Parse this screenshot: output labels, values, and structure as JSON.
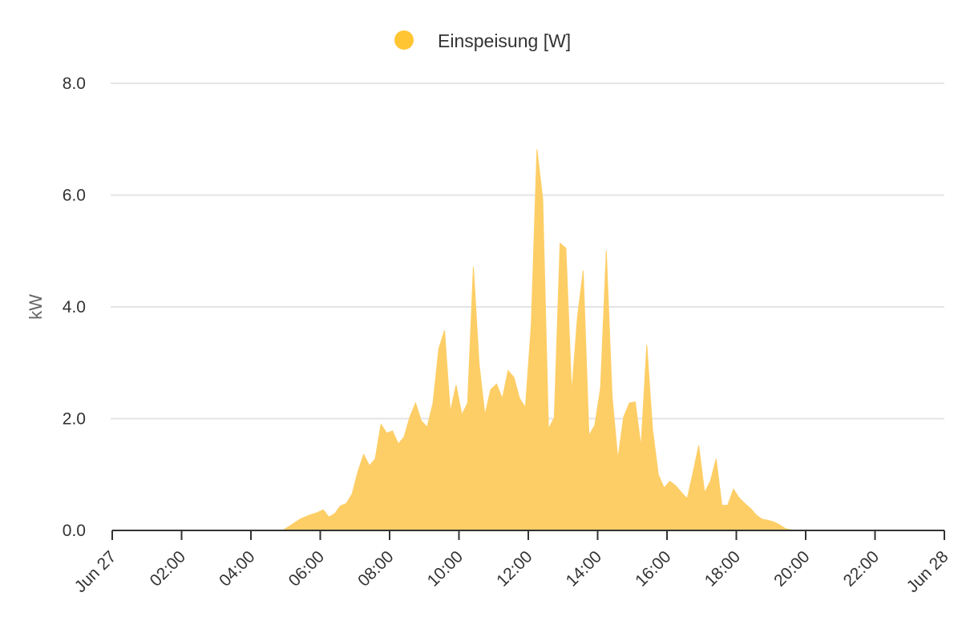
{
  "chart_data": {
    "type": "area",
    "title": "",
    "xlabel": "",
    "ylabel": "kW",
    "ylim": [
      0,
      8
    ],
    "y_ticks": [
      "0.0",
      "2.0",
      "4.0",
      "6.0",
      "8.0"
    ],
    "x_ticks": [
      "Jun 27",
      "02:00",
      "04:00",
      "06:00",
      "08:00",
      "10:00",
      "12:00",
      "14:00",
      "16:00",
      "18:00",
      "20:00",
      "22:00",
      "Jun 28"
    ],
    "grid": true,
    "legend_position": "top-center",
    "series": [
      {
        "name": "Einspeisung [W]",
        "color": "#FFC533",
        "fill_color": "#FDCE66",
        "x": [
          "00:00",
          "04:55",
          "05:10",
          "05:25",
          "05:40",
          "05:55",
          "06:05",
          "06:15",
          "06:25",
          "06:35",
          "06:45",
          "06:55",
          "07:05",
          "07:15",
          "07:25",
          "07:35",
          "07:45",
          "07:55",
          "08:05",
          "08:15",
          "08:25",
          "08:35",
          "08:45",
          "08:55",
          "09:05",
          "09:15",
          "09:25",
          "09:35",
          "09:45",
          "09:55",
          "10:05",
          "10:15",
          "10:25",
          "10:35",
          "10:45",
          "10:55",
          "11:05",
          "11:15",
          "11:25",
          "11:35",
          "11:45",
          "11:55",
          "12:05",
          "12:15",
          "12:25",
          "12:35",
          "12:45",
          "12:55",
          "13:05",
          "13:15",
          "13:25",
          "13:35",
          "13:45",
          "13:55",
          "14:05",
          "14:15",
          "14:25",
          "14:35",
          "14:45",
          "14:55",
          "15:05",
          "15:15",
          "15:25",
          "15:35",
          "15:45",
          "15:55",
          "16:05",
          "16:15",
          "16:25",
          "16:35",
          "16:45",
          "16:55",
          "17:05",
          "17:15",
          "17:25",
          "17:35",
          "17:45",
          "17:55",
          "18:05",
          "18:15",
          "18:25",
          "18:35",
          "18:45",
          "18:55",
          "19:05",
          "19:15",
          "19:25",
          "19:40",
          "24:00"
        ],
        "values": [
          0,
          0,
          0.1,
          0.2,
          0.27,
          0.32,
          0.37,
          0.24,
          0.3,
          0.44,
          0.48,
          0.65,
          1.05,
          1.36,
          1.16,
          1.28,
          1.9,
          1.74,
          1.78,
          1.55,
          1.67,
          2.03,
          2.28,
          1.96,
          1.85,
          2.28,
          3.25,
          3.58,
          2.12,
          2.6,
          2.07,
          2.28,
          4.72,
          2.97,
          2.07,
          2.52,
          2.62,
          2.36,
          2.86,
          2.74,
          2.36,
          2.2,
          3.66,
          6.82,
          5.93,
          1.82,
          2.02,
          5.14,
          5.05,
          2.46,
          3.82,
          4.65,
          1.7,
          1.88,
          2.55,
          5.01,
          2.41,
          1.28,
          2.03,
          2.28,
          2.3,
          1.5,
          3.32,
          1.81,
          1.0,
          0.76,
          0.88,
          0.8,
          0.68,
          0.57,
          1.03,
          1.52,
          0.68,
          0.88,
          1.28,
          0.45,
          0.45,
          0.74,
          0.58,
          0.48,
          0.39,
          0.27,
          0.2,
          0.18,
          0.15,
          0.1,
          0.03,
          0,
          0
        ]
      }
    ]
  }
}
